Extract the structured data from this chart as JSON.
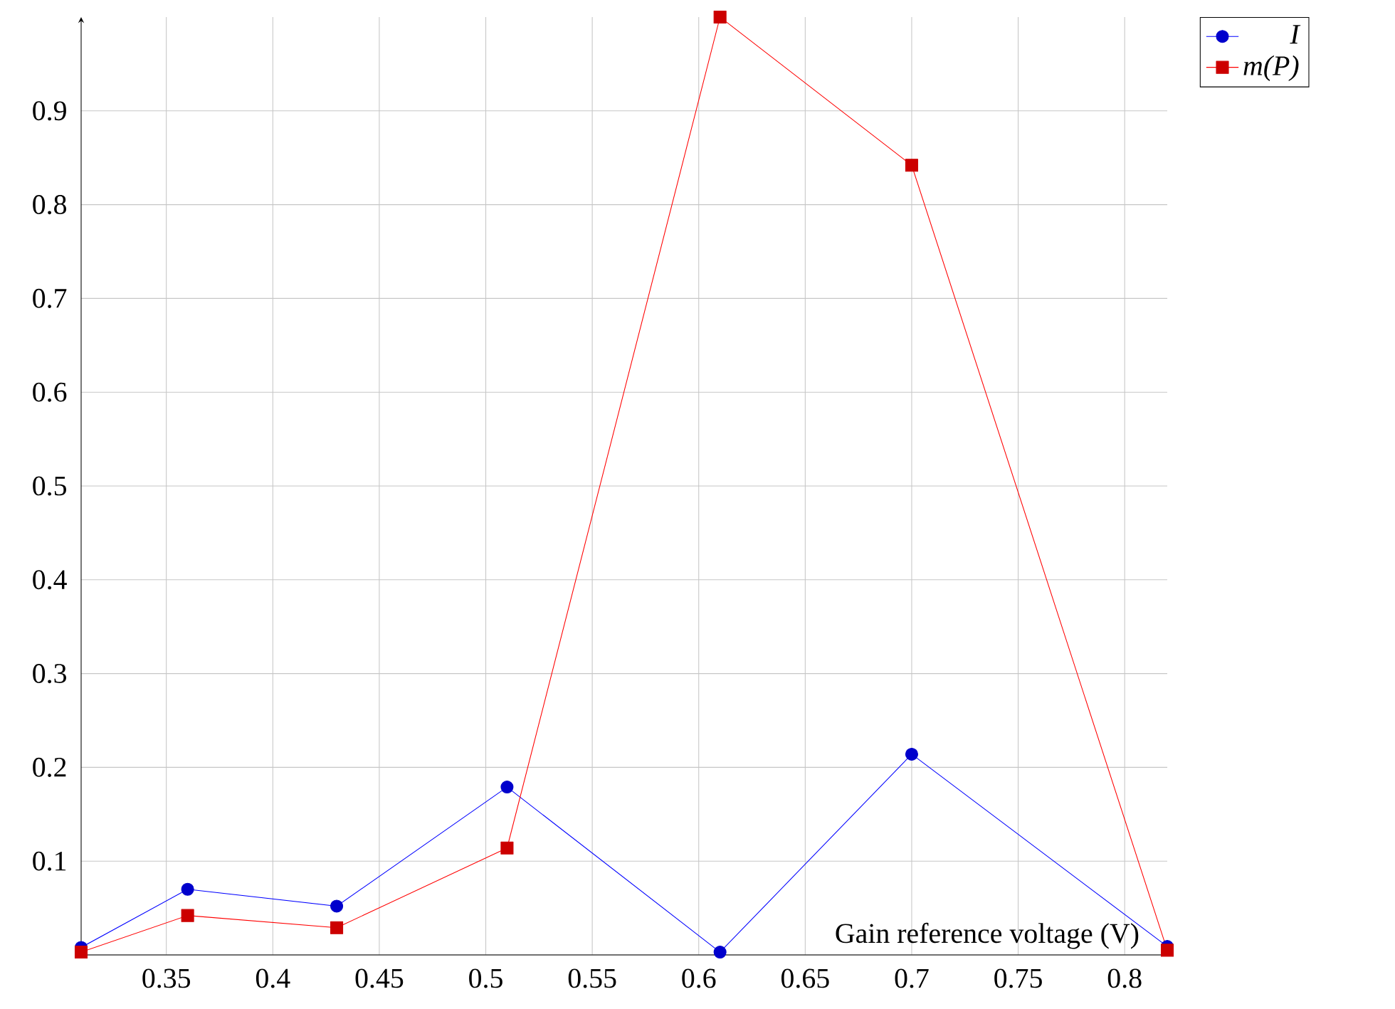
{
  "chart_data": {
    "type": "line",
    "xlabel": "Gain reference voltage (V)",
    "x": [
      0.31,
      0.36,
      0.43,
      0.51,
      0.61,
      0.7,
      0.82
    ],
    "series": [
      {
        "name": "I",
        "color": "#0000ff",
        "marker": "circle",
        "values": [
          0.008,
          0.07,
          0.052,
          0.179,
          0.003,
          0.214,
          0.009
        ]
      },
      {
        "name": "m(P)",
        "color": "#ff0000",
        "marker": "square",
        "values": [
          0.003,
          0.042,
          0.029,
          0.114,
          1.0,
          0.842,
          0.005
        ]
      }
    ],
    "xlim": [
      0.31,
      0.82
    ],
    "ylim": [
      0,
      1
    ],
    "xticks": [
      0.35,
      0.4,
      0.45,
      0.5,
      0.55,
      0.6,
      0.65,
      0.7,
      0.75,
      0.8
    ],
    "yticks": [
      {
        "value": 0,
        "label": null
      },
      0.1,
      0.2,
      0.3,
      0.4,
      0.5,
      0.6,
      0.7,
      0.8,
      0.9
    ],
    "grid": true,
    "legend": "top right",
    "line_style": "solid"
  }
}
